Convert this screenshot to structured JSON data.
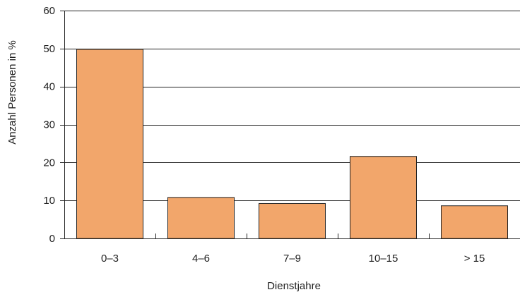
{
  "chart_data": {
    "type": "bar",
    "title": "",
    "xlabel": "Dienstjahre",
    "ylabel": "Anzahl Personen in %",
    "categories": [
      "0–3",
      "4–6",
      "7–9",
      "10–15",
      "> 15"
    ],
    "values": [
      49.8,
      10.8,
      9.2,
      21.6,
      8.6
    ],
    "ylim": [
      0,
      60
    ],
    "yticks": [
      "0",
      "10",
      "20",
      "30",
      "40",
      "50",
      "60"
    ],
    "grid": true,
    "legend": "none",
    "colors": {
      "bar_fill": "#f2a66b",
      "bar_stroke": "#222222",
      "grid": "#222222",
      "axis": "#222222"
    }
  }
}
